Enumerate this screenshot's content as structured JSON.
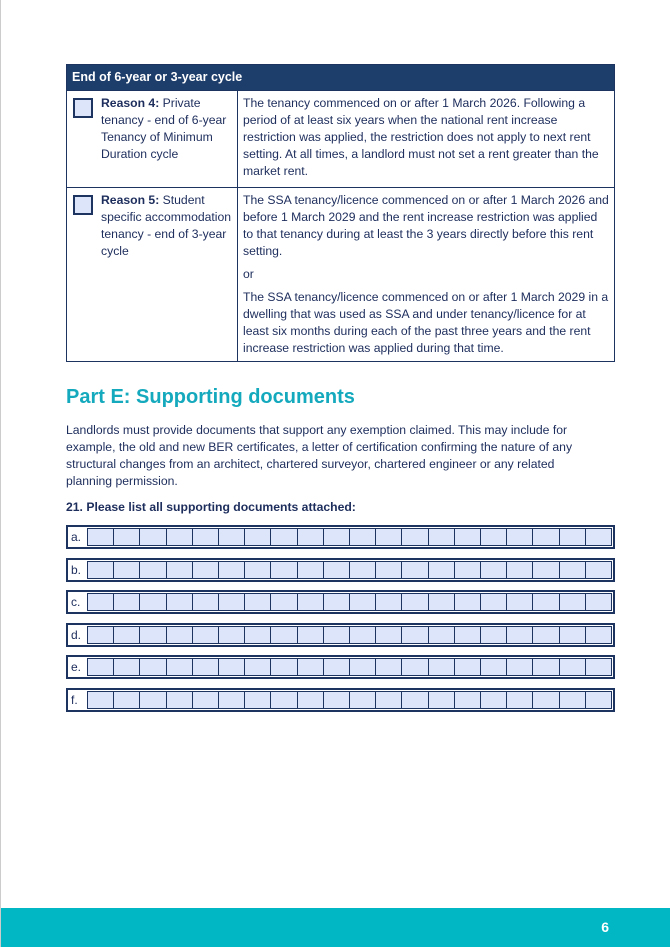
{
  "table": {
    "header": "End of 6-year or 3-year cycle",
    "rows": [
      {
        "reason_label": "Reason 4:",
        "reason_text": " Private tenancy - end of 6-year Tenancy of Minimum Duration cycle",
        "description": [
          "The tenancy commenced on or after 1 March 2026. Following a period of at least six years when the national rent increase restriction was applied, the restriction does not apply to next rent setting. At all times, a landlord must not set a rent greater than the market rent."
        ]
      },
      {
        "reason_label": "Reason 5:",
        "reason_text": " Student specific accommodation tenancy - end of 3-year cycle",
        "description": [
          "The SSA tenancy/licence commenced on or after 1 March 2026 and before 1 March 2029 and the rent increase restriction was applied to that tenancy during at least the 3 years directly before this rent setting.",
          "or",
          "The SSA tenancy/licence commenced on or after 1 March 2029 in a dwelling that was used as SSA and under tenancy/licence for at least six months during each of the past three years and the rent increase restriction was applied during that time."
        ]
      }
    ]
  },
  "part_e": {
    "title": "Part E: Supporting documents",
    "intro": "Landlords must provide documents that support any exemption claimed. This may include for example, the old and new BER certificates, a letter of certification confirming the nature of any structural changes from an architect, chartered surveyor, chartered engineer or any related planning permission.",
    "question": "21.  Please list all supporting documents attached:",
    "rows": [
      "a.",
      "b.",
      "c.",
      "d.",
      "e.",
      "f."
    ]
  },
  "footer": {
    "page_number": "6"
  },
  "colors": {
    "navy": "#1d3d6b",
    "teal": "#00b7c3",
    "field": "#dde5fb"
  }
}
